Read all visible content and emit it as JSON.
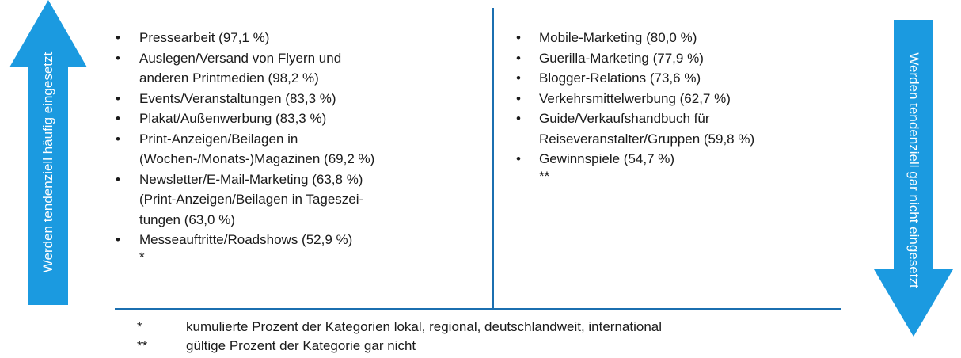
{
  "left_arrow": "Werden tendenziell häufig eingesetzt",
  "right_arrow": "Werden tendenziell gar nicht eingesetzt",
  "left_list": {
    "items": [
      [
        "Pressearbeit (97,1 %)"
      ],
      [
        "Auslegen/Versand von Flyern und",
        "anderen Printmedien (98,2 %)"
      ],
      [
        "Events/Veranstaltungen (83,3 %)"
      ],
      [
        "Plakat/Außenwerbung (83,3 %)"
      ],
      [
        "Print-Anzeigen/Beilagen in",
        "(Wochen-/Monats-)Magazinen (69,2 %)"
      ],
      [
        "Newsletter/E-Mail-Marketing (63,8 %)",
        "(Print-Anzeigen/Beilagen in Tageszei-",
        "tungen (63,0 %)"
      ],
      [
        "Messeauftritte/Roadshows (52,9 %)"
      ]
    ],
    "marker": "*"
  },
  "right_list": {
    "items": [
      [
        "Mobile-Marketing (80,0 %)"
      ],
      [
        "Guerilla-Marketing (77,9 %)"
      ],
      [
        "Blogger-Relations (73,6 %)"
      ],
      [
        "Verkehrsmittelwerbung (62,7 %)"
      ],
      [
        "Guide/Verkaufshandbuch für",
        "Reiseveranstalter/Gruppen (59,8 %)"
      ],
      [
        "Gewinnspiele (54,7 %)"
      ]
    ],
    "marker": "**"
  },
  "footnotes": [
    {
      "symbol": "*",
      "text": "kumulierte Prozent der Kategorien lokal, regional, deutschlandweit, international"
    },
    {
      "symbol": "**",
      "text": "gültige Prozent der Kategorie gar nicht"
    }
  ]
}
